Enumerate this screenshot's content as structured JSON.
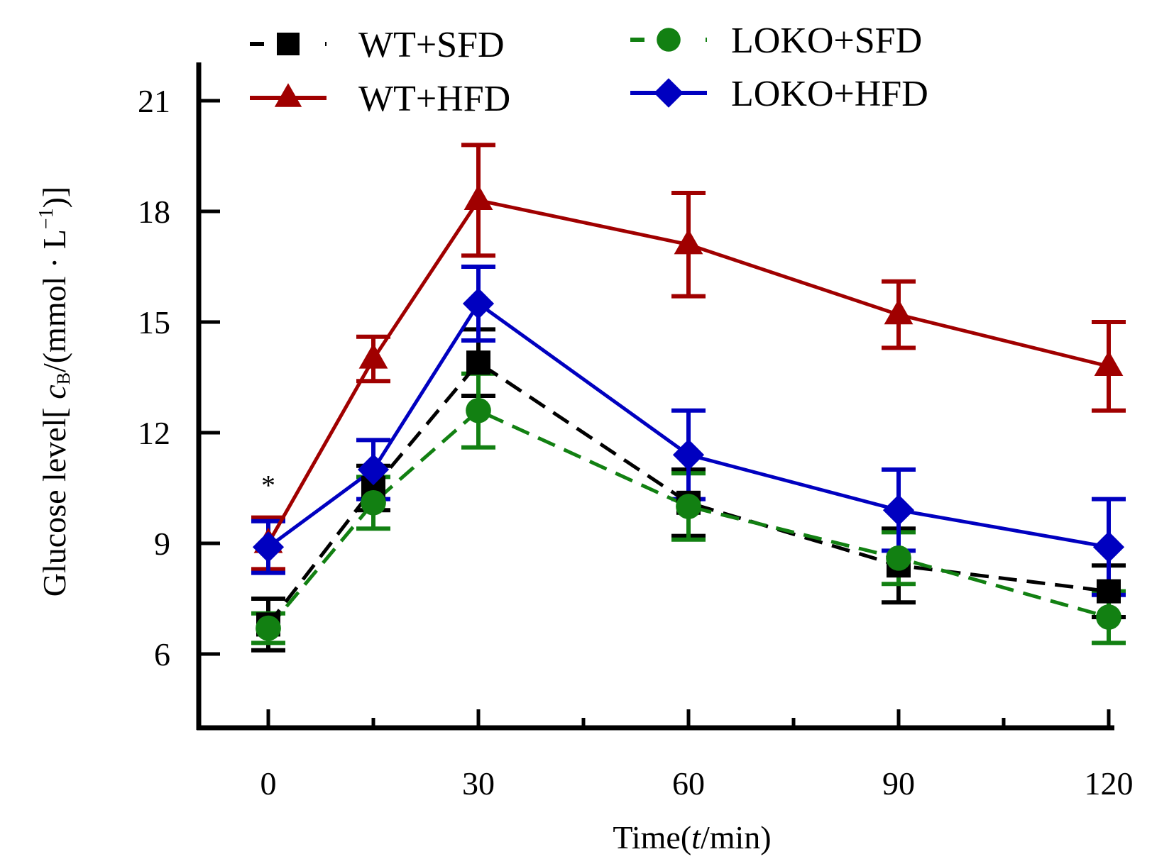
{
  "chart_data": {
    "type": "line",
    "title": "",
    "xlabel": "Time(t/min)",
    "xlabel_parts": {
      "prefix": "Time(",
      "italic": "t",
      "suffix": "/min)"
    },
    "ylabel": "Glucose level[cB/(mmol·L−1)]",
    "ylabel_parts": {
      "prefix": "Glucose level[ ",
      "italic": "c",
      "sub": "B",
      "mid": "/(mmol · L",
      "sup": "−1",
      "suffix": ")]"
    },
    "x": [
      0,
      15,
      30,
      60,
      90,
      120
    ],
    "xlim": [
      -10,
      125
    ],
    "ylim": [
      4,
      22
    ],
    "xticks": [
      0,
      30,
      60,
      90,
      120
    ],
    "xticklabels": [
      "0",
      "30",
      "60",
      "90",
      "120"
    ],
    "x_minor_ticks": [
      15,
      45,
      75,
      105
    ],
    "yticks": [
      6,
      9,
      12,
      15,
      18,
      21
    ],
    "yticklabels": [
      "6",
      "9",
      "12",
      "15",
      "18",
      "21"
    ],
    "grid": false,
    "legend_position": "top",
    "annotations": [
      {
        "text": "*",
        "x": 0,
        "y": 10.7
      }
    ],
    "series": [
      {
        "name": "WT+SFD",
        "color": "#000000",
        "dash": "dashed",
        "marker": "square",
        "values": [
          6.8,
          10.5,
          13.9,
          10.1,
          8.4,
          7.7
        ],
        "errors": [
          0.7,
          0.6,
          0.9,
          0.9,
          1.0,
          0.7
        ]
      },
      {
        "name": "WT+HFD",
        "color": "#a00000",
        "dash": "solid",
        "marker": "triangle",
        "values": [
          9.0,
          14.0,
          18.3,
          17.1,
          15.2,
          13.8
        ],
        "errors": [
          0.7,
          0.6,
          1.5,
          1.4,
          0.9,
          1.2
        ]
      },
      {
        "name": "LOKO+SFD",
        "color": "#128012",
        "dash": "dashed",
        "marker": "circle",
        "values": [
          6.7,
          10.1,
          12.6,
          10.0,
          8.6,
          7.0
        ],
        "errors": [
          0.4,
          0.7,
          1.0,
          0.9,
          0.7,
          0.7
        ]
      },
      {
        "name": "LOKO+HFD",
        "color": "#0000c0",
        "dash": "solid",
        "marker": "diamond",
        "values": [
          8.9,
          11.0,
          15.5,
          11.4,
          9.9,
          8.9
        ],
        "errors": [
          0.7,
          0.8,
          1.0,
          1.2,
          1.1,
          1.3
        ]
      }
    ]
  }
}
